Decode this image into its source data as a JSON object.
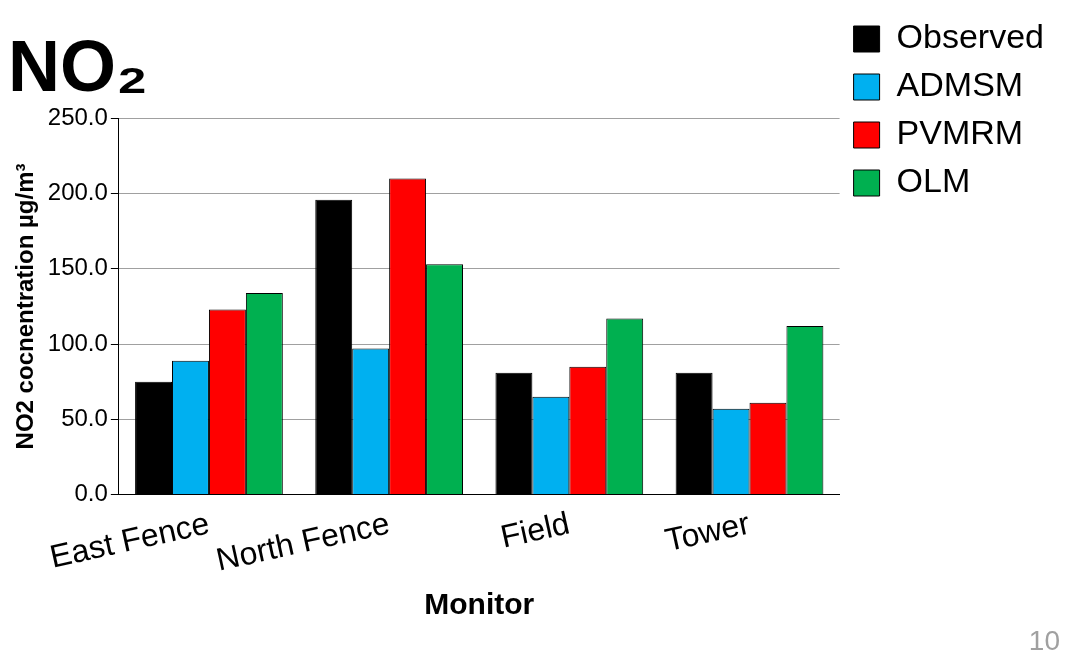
{
  "chart_data": {
    "type": "bar",
    "title": "NO₂",
    "xlabel": "Monitor",
    "ylabel": "NO2 cocnentration µg/m³",
    "categories": [
      "East Fence",
      "North Fence",
      "Field",
      "Tower"
    ],
    "series": [
      {
        "name": "Observed",
        "color": "#000000",
        "values": [
          75,
          196,
          81,
          81
        ]
      },
      {
        "name": "ADMSM",
        "color": "#00b0f0",
        "values": [
          89,
          97,
          65,
          57
        ]
      },
      {
        "name": "PVMRM",
        "color": "#ff0000",
        "values": [
          123,
          210,
          85,
          61
        ]
      },
      {
        "name": "OLM",
        "color": "#00b050",
        "values": [
          134,
          153,
          117,
          112
        ]
      }
    ],
    "ylim": [
      0,
      250
    ],
    "yticks": [
      {
        "value": 0,
        "label": "0.0"
      },
      {
        "value": 50,
        "label": "50.0"
      },
      {
        "value": 100,
        "label": "100.0"
      },
      {
        "value": 150,
        "label": "150.0"
      },
      {
        "value": 200,
        "label": "200.0"
      },
      {
        "value": 250,
        "label": "250.0"
      }
    ],
    "grid": "y",
    "legend": "top right",
    "annotations": [
      "10"
    ]
  }
}
